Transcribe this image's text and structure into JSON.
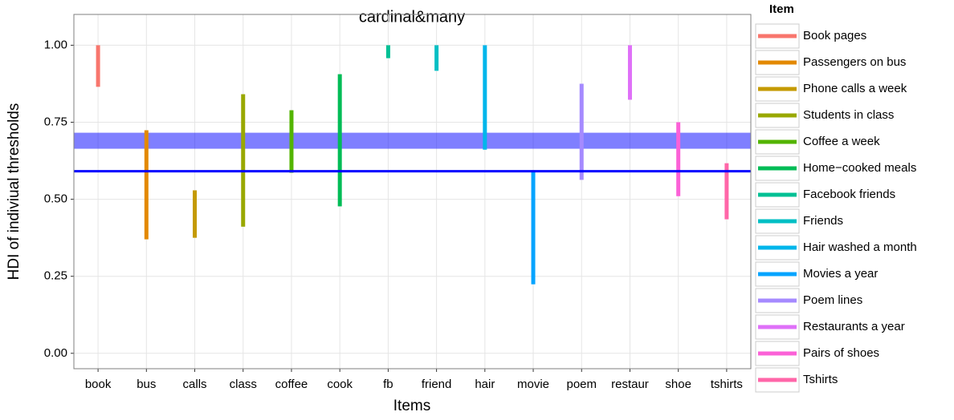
{
  "chart_data": {
    "type": "range",
    "title": "cardinal&many",
    "x_label": "Items",
    "y_label": "HDI of indiviual thresholds",
    "legend_title": "Item",
    "categories": [
      "book",
      "bus",
      "calls",
      "class",
      "coffee",
      "cook",
      "fb",
      "friend",
      "hair",
      "movie",
      "poem",
      "restaur",
      "shoe",
      "tshirts"
    ],
    "legend_labels": [
      "Book pages",
      "Passengers on bus",
      "Phone calls a week",
      "Students in class",
      "Coffee a week",
      "Home−cooked meals",
      "Facebook friends",
      "Friends",
      "Hair washed a month",
      "Movies a year",
      "Poem lines",
      "Restaurants a year",
      "Pairs of shoes",
      "Tshirts"
    ],
    "colors": [
      "#F8766D",
      "#E38900",
      "#C49A00",
      "#99A800",
      "#53B400",
      "#00BC56",
      "#00C094",
      "#00BFC4",
      "#00B6EB",
      "#06A4FF",
      "#A58AFF",
      "#DF70F8",
      "#FB61D7",
      "#FF66A8"
    ],
    "low": [
      0.865,
      0.37,
      0.375,
      0.411,
      0.586,
      0.477,
      0.958,
      0.917,
      0.661,
      0.224,
      0.563,
      0.823,
      0.51,
      0.435
    ],
    "high": [
      1.0,
      0.724,
      0.529,
      0.841,
      0.789,
      0.906,
      1.0,
      1.0,
      1.0,
      0.591,
      0.875,
      1.0,
      0.75,
      0.617
    ],
    "band": {
      "ymin": 0.664,
      "ymax": 0.716,
      "color": "#0000ff",
      "opacity": 0.5
    },
    "hline": {
      "y": 0.591,
      "color": "#0000ff"
    },
    "ylim": [
      -0.05,
      1.1
    ],
    "yticks": [
      {
        "value": 0,
        "label": "0.00"
      },
      {
        "value": 0.25,
        "label": "0.25"
      },
      {
        "value": 0.5,
        "label": "0.50"
      },
      {
        "value": 0.75,
        "label": "0.75"
      },
      {
        "value": 1,
        "label": "1.00"
      }
    ],
    "grid": true
  }
}
